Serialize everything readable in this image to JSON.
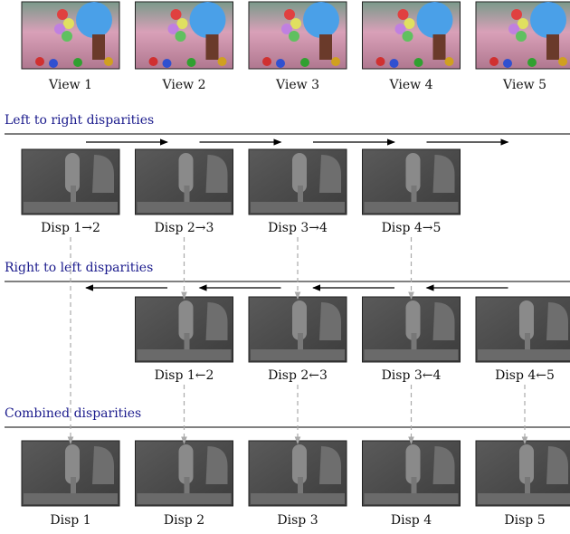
{
  "views": [
    "View 1",
    "View 2",
    "View 3",
    "View 4",
    "View 5"
  ],
  "left_to_right": {
    "title": "Left to right disparities",
    "labels": [
      "Disp 1→2",
      "Disp 2→3",
      "Disp 3→4",
      "Disp 4→5"
    ]
  },
  "right_to_left": {
    "title": "Right to left disparities",
    "labels": [
      "Disp 1←2",
      "Disp 2←3",
      "Disp 3←4",
      "Disp 4←5"
    ]
  },
  "combined": {
    "title": "Combined disparities",
    "labels": [
      "Disp 1",
      "Disp 2",
      "Disp 3",
      "Disp 4",
      "Disp 5"
    ]
  }
}
